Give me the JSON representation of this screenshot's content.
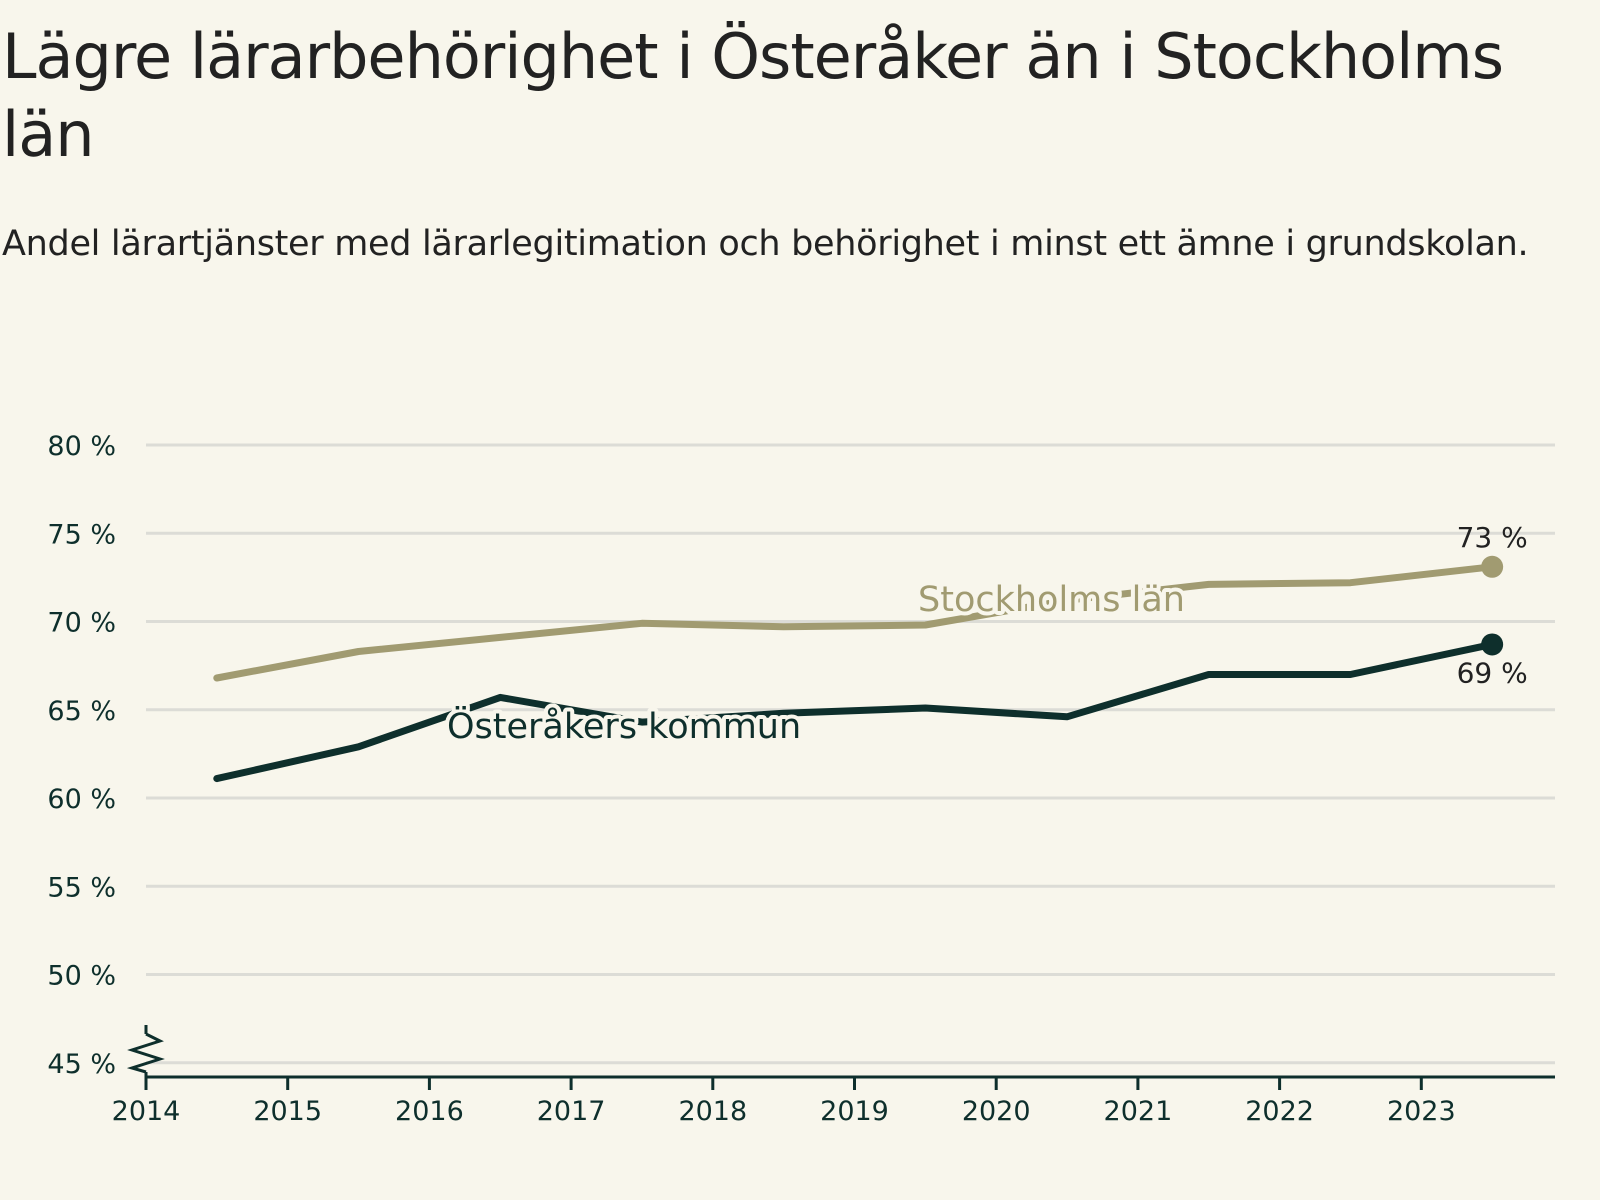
{
  "title": "Lägre lärarbehörighet i Österåker än i Stockholms län",
  "subtitle": "Andel lärartjänster med lärarlegitimation och behörighet i minst ett ämne i grundskolan.",
  "colors": {
    "background": "#f8f6ec",
    "stockholm": "#a19b71",
    "osteraker": "#0e2f2c",
    "grid": "#dcdcd6",
    "axis": "#0e2f2c"
  },
  "chart_data": {
    "type": "line",
    "x": [
      "2014",
      "2015",
      "2016",
      "2017",
      "2018",
      "2019",
      "2020",
      "2021",
      "2022",
      "2023"
    ],
    "ylim": [
      45,
      80
    ],
    "yticks": [
      45,
      50,
      55,
      60,
      65,
      70,
      75,
      80
    ],
    "ytick_labels": [
      "45 %",
      "50 %",
      "55 %",
      "60 %",
      "65 %",
      "70 %",
      "75 %",
      "80 %"
    ],
    "series": [
      {
        "name": "Stockholms län",
        "label": "Stockholms län",
        "color": "#a19b71",
        "values": [
          66.8,
          68.3,
          69.1,
          69.9,
          69.7,
          69.8,
          71.2,
          72.1,
          72.2,
          73.1
        ],
        "end_label": "73 %"
      },
      {
        "name": "Österåkers kommun",
        "label": "Österåkers kommun",
        "color": "#0e2f2c",
        "values": [
          61.1,
          62.9,
          65.7,
          64.3,
          64.8,
          65.1,
          64.6,
          67.0,
          67.0,
          68.7
        ],
        "end_label": "69 %"
      }
    ],
    "axis_break": true,
    "grid": true,
    "xlabel": "",
    "ylabel": ""
  }
}
